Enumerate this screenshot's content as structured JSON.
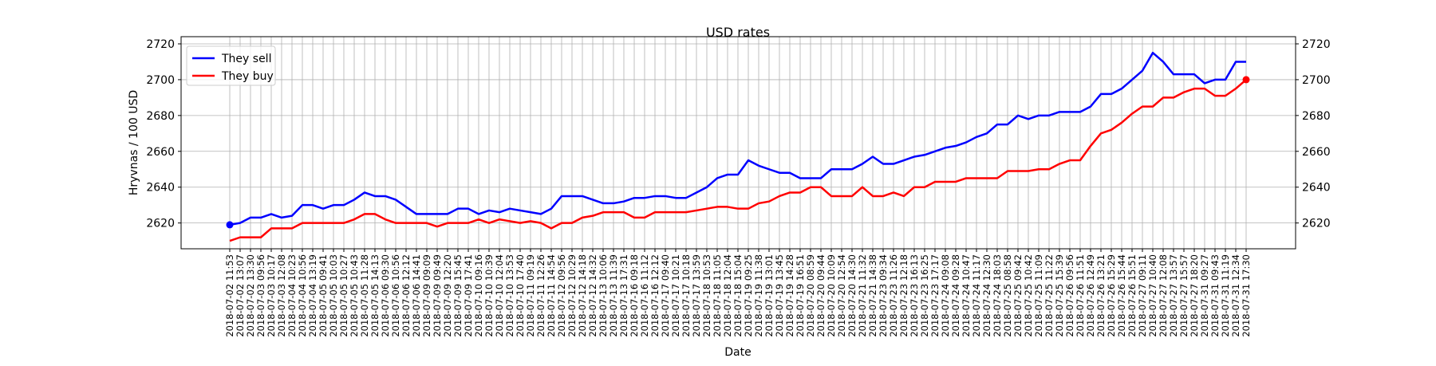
{
  "chart_data": {
    "type": "line",
    "title": "USD rates",
    "xlabel": "Date",
    "ylabel": "Hryvnas / 100 USD",
    "categories": [
      "2018-07-02 11:53",
      "2018-07-02 13:07",
      "2018-07-02 13:30",
      "2018-07-03 09:56",
      "2018-07-03 10:17",
      "2018-07-03 12:08",
      "2018-07-04 10:23",
      "2018-07-04 10:56",
      "2018-07-04 13:19",
      "2018-07-05 09:41",
      "2018-07-05 10:03",
      "2018-07-05 10:27",
      "2018-07-05 10:43",
      "2018-07-05 11:28",
      "2018-07-05 14:13",
      "2018-07-06 09:30",
      "2018-07-06 10:56",
      "2018-07-06 12:12",
      "2018-07-06 14:41",
      "2018-07-09 09:09",
      "2018-07-09 09:49",
      "2018-07-09 12:20",
      "2018-07-09 15:45",
      "2018-07-09 17:41",
      "2018-07-10 09:16",
      "2018-07-10 10:39",
      "2018-07-10 12:04",
      "2018-07-10 13:53",
      "2018-07-10 17:40",
      "2018-07-11 09:19",
      "2018-07-11 12:26",
      "2018-07-11 14:54",
      "2018-07-12 09:56",
      "2018-07-12 10:29",
      "2018-07-12 14:18",
      "2018-07-12 14:32",
      "2018-07-13 10:06",
      "2018-07-13 11:39",
      "2018-07-13 17:31",
      "2018-07-16 09:18",
      "2018-07-16 11:12",
      "2018-07-16 12:12",
      "2018-07-17 09:40",
      "2018-07-17 10:21",
      "2018-07-17 10:18",
      "2018-07-17 13:59",
      "2018-07-18 10:53",
      "2018-07-18 11:05",
      "2018-07-18 12:04",
      "2018-07-18 15:04",
      "2018-07-19 09:25",
      "2018-07-19 11:38",
      "2018-07-19 13:01",
      "2018-07-19 13:45",
      "2018-07-19 14:28",
      "2018-07-19 16:51",
      "2018-07-20 08:59",
      "2018-07-20 09:44",
      "2018-07-20 10:09",
      "2018-07-20 12:54",
      "2018-07-20 14:30",
      "2018-07-21 11:32",
      "2018-07-21 14:38",
      "2018-07-23 09:34",
      "2018-07-23 11:26",
      "2018-07-23 12:18",
      "2018-07-23 16:13",
      "2018-07-23 16:25",
      "2018-07-23 17:17",
      "2018-07-24 09:08",
      "2018-07-24 09:28",
      "2018-07-24 10:47",
      "2018-07-24 11:17",
      "2018-07-24 12:30",
      "2018-07-24 18:03",
      "2018-07-25 08:58",
      "2018-07-25 09:42",
      "2018-07-25 10:42",
      "2018-07-25 11:09",
      "2018-07-25 11:22",
      "2018-07-25 15:39",
      "2018-07-26 09:56",
      "2018-07-26 11:51",
      "2018-07-26 12:49",
      "2018-07-26 13:21",
      "2018-07-26 15:29",
      "2018-07-26 15:44",
      "2018-07-26 15:51",
      "2018-07-27 09:11",
      "2018-07-27 10:40",
      "2018-07-27 12:08",
      "2018-07-27 13:57",
      "2018-07-27 15:57",
      "2018-07-27 18:20",
      "2018-07-31 09:27",
      "2018-07-31 09:43",
      "2018-07-31 11:19",
      "2018-07-31 12:34",
      "2018-07-31 17:30"
    ],
    "series": [
      {
        "name": "They sell",
        "color": "#0000ff",
        "values": [
          2619,
          2620,
          2623,
          2623,
          2625,
          2623,
          2624,
          2630,
          2630,
          2628,
          2630,
          2630,
          2633,
          2637,
          2635,
          2635,
          2633,
          2629,
          2625,
          2625,
          2625,
          2625,
          2628,
          2628,
          2625,
          2627,
          2626,
          2628,
          2627,
          2626,
          2625,
          2628,
          2635,
          2635,
          2635,
          2633,
          2631,
          2631,
          2632,
          2634,
          2634,
          2635,
          2635,
          2634,
          2634,
          2637,
          2640,
          2645,
          2647,
          2647,
          2655,
          2652,
          2650,
          2648,
          2648,
          2645,
          2645,
          2645,
          2650,
          2650,
          2650,
          2653,
          2657,
          2653,
          2653,
          2655,
          2657,
          2658,
          2660,
          2662,
          2663,
          2665,
          2668,
          2670,
          2675,
          2675,
          2680,
          2678,
          2680,
          2680,
          2682,
          2682,
          2682,
          2685,
          2692,
          2692,
          2695,
          2700,
          2705,
          2715,
          2710,
          2703,
          2703,
          2703,
          2698,
          2700,
          2700,
          2710,
          2710
        ]
      },
      {
        "name": "They buy",
        "color": "#ff0000",
        "values": [
          2610,
          2612,
          2612,
          2612,
          2617,
          2617,
          2617,
          2620,
          2620,
          2620,
          2620,
          2620,
          2622,
          2625,
          2625,
          2622,
          2620,
          2620,
          2620,
          2620,
          2618,
          2620,
          2620,
          2620,
          2622,
          2620,
          2622,
          2621,
          2620,
          2621,
          2620,
          2617,
          2620,
          2620,
          2623,
          2624,
          2626,
          2626,
          2626,
          2623,
          2623,
          2626,
          2626,
          2626,
          2626,
          2627,
          2628,
          2629,
          2629,
          2628,
          2628,
          2631,
          2632,
          2635,
          2637,
          2637,
          2640,
          2640,
          2635,
          2635,
          2635,
          2640,
          2635,
          2635,
          2637,
          2635,
          2640,
          2640,
          2643,
          2643,
          2643,
          2645,
          2645,
          2645,
          2645,
          2649,
          2649,
          2649,
          2650,
          2650,
          2653,
          2655,
          2655,
          2663,
          2670,
          2672,
          2676,
          2681,
          2685,
          2685,
          2690,
          2690,
          2693,
          2695,
          2695,
          2691,
          2691,
          2695,
          2700
        ]
      }
    ],
    "ylim": [
      2605.6,
      2724
    ],
    "yticks": [
      2620,
      2640,
      2660,
      2680,
      2700,
      2720
    ],
    "y2ticks": [
      2620,
      2640,
      2660,
      2680,
      2700,
      2720
    ],
    "grid": true,
    "legend": "upper left"
  }
}
